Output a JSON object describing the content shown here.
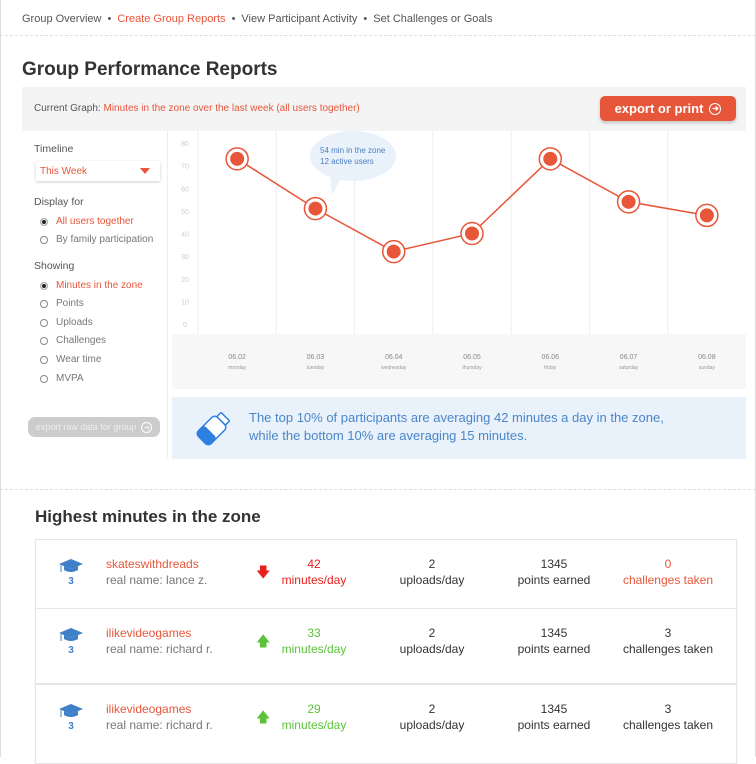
{
  "nav": {
    "items": [
      {
        "label": "Group Overview",
        "active": false
      },
      {
        "label": "Create Group Reports",
        "active": true
      },
      {
        "label": "View Participant Activity",
        "active": false
      },
      {
        "label": "Set Challenges or Goals",
        "active": false
      }
    ]
  },
  "page_title": "Group Performance Reports",
  "graph_bar": {
    "prefix": "Current Graph:",
    "current": "Minutes in the zone over the last week (all users together)",
    "export_label": "export or print"
  },
  "sidebar": {
    "timeline_label": "Timeline",
    "timeline_value": "This Week",
    "display_label": "Display for",
    "display_options": [
      {
        "label": "All users together",
        "selected": true
      },
      {
        "label": "By family participation",
        "selected": false
      }
    ],
    "showing_label": "Showing",
    "showing_options": [
      {
        "label": "Minutes in the zone",
        "selected": true
      },
      {
        "label": "Points",
        "selected": false
      },
      {
        "label": "Uploads",
        "selected": false
      },
      {
        "label": "Challenges",
        "selected": false
      },
      {
        "label": "Wear time",
        "selected": false
      },
      {
        "label": "MVPA",
        "selected": false
      }
    ],
    "export_raw_label": "export raw data for group"
  },
  "chart_data": {
    "type": "line",
    "categories": [
      "06.02",
      "06.03",
      "06.04",
      "06.05",
      "06.06",
      "06.07",
      "06.08"
    ],
    "category_sublabels": [
      "monday",
      "tuesday",
      "wednesday",
      "thursday",
      "friday",
      "saturday",
      "sunday"
    ],
    "values": [
      73,
      51,
      32,
      40,
      73,
      54,
      48
    ],
    "yticks": [
      0,
      10,
      20,
      30,
      40,
      50,
      60,
      70,
      80
    ],
    "ylim": [
      0,
      80
    ],
    "grid": "vertical",
    "color": "#e8563a",
    "tooltip": {
      "line1": "54 min in the zone",
      "line2": "12 active users"
    }
  },
  "insight": {
    "icon": "water-bottle-icon",
    "line1": "The top 10% of participants are averaging 42 minutes a day in the zone,",
    "line2": "while the bottom 10% are averaging 15 minutes."
  },
  "leaderboard": {
    "title": "Highest minutes in the zone",
    "rows": [
      {
        "level": "3",
        "username": "skateswithdreads",
        "real_name": "real name: lance z.",
        "trend": "down",
        "minutes": "42",
        "minutes_unit": "minutes/day",
        "uploads": "2",
        "uploads_unit": "uploads/day",
        "points": "1345",
        "points_unit": "points earned",
        "challenges": "0",
        "challenges_unit": "challenges taken",
        "challenges_highlight": true
      },
      {
        "level": "3",
        "username": "ilikevideogames",
        "real_name": "real name: richard r.",
        "trend": "up",
        "minutes": "33",
        "minutes_unit": "minutes/day",
        "uploads": "2",
        "uploads_unit": "uploads/day",
        "points": "1345",
        "points_unit": "points earned",
        "challenges": "3",
        "challenges_unit": "challenges taken",
        "challenges_highlight": false
      },
      {
        "level": "3",
        "username": "ilikevideogames",
        "real_name": "real name: richard r.",
        "trend": "up",
        "minutes": "29",
        "minutes_unit": "minutes/day",
        "uploads": "2",
        "uploads_unit": "uploads/day",
        "points": "1345",
        "points_unit": "points earned",
        "challenges": "3",
        "challenges_unit": "challenges taken",
        "challenges_highlight": false
      }
    ]
  },
  "colors": {
    "accent": "#e8563a",
    "up": "#5cc23a",
    "down": "#e8201c",
    "info": "#4a86c8"
  }
}
